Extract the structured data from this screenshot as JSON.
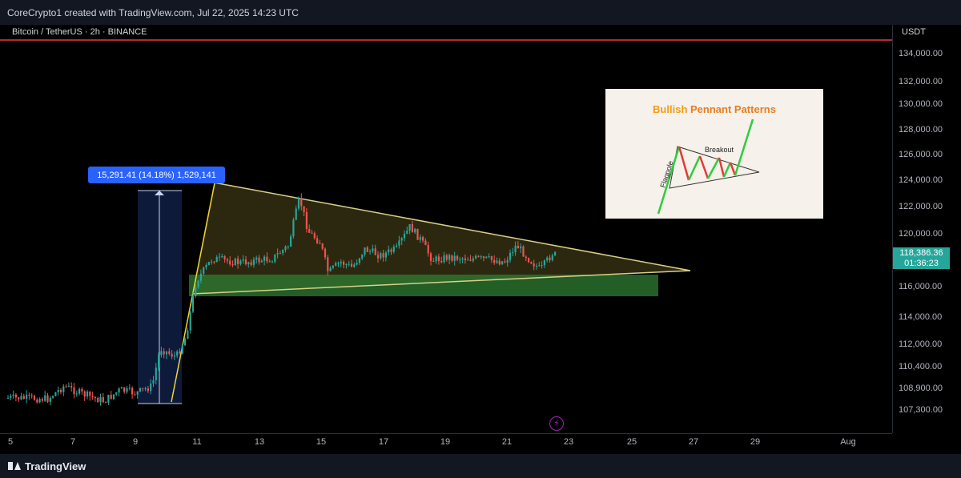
{
  "top_bar": {
    "text": "CoreCrypto1 created with TradingView.com, Jul 22, 2025 14:23 UTC"
  },
  "symbol": {
    "header": "Bitcoin / TetherUS · 2h · BINANCE"
  },
  "currency": "USDT",
  "price_scale": [
    "134,000.00",
    "132,000.00",
    "130,000.00",
    "128,000.00",
    "126,000.00",
    "124,000.00",
    "122,000.00",
    "120,000.00",
    "116,000.00",
    "114,000.00",
    "112,000.00",
    "110,400.00",
    "108,900.00",
    "107,300.00"
  ],
  "current_price": {
    "price": "118,386.36",
    "countdown": "01:36:23"
  },
  "time_axis": [
    "5",
    "7",
    "9",
    "11",
    "13",
    "15",
    "17",
    "19",
    "21",
    "23",
    "25",
    "27",
    "29",
    "Aug"
  ],
  "measure_label": "15,291.41 (14.18%) 1,529,141",
  "inset": {
    "title_part1": "Bullish",
    "title_part2": "Pennant Patterns",
    "label_flagpole": "Flagpole",
    "label_breakout": "Breakout"
  },
  "footer": {
    "brand": "TradingView"
  },
  "colors": {
    "up": "#26a69a",
    "down": "#ef5350",
    "accent": "#2962ff",
    "triangle_line": "#d8cf8a",
    "support_zone": "#2e7d32",
    "resistance": "#f23645"
  }
}
